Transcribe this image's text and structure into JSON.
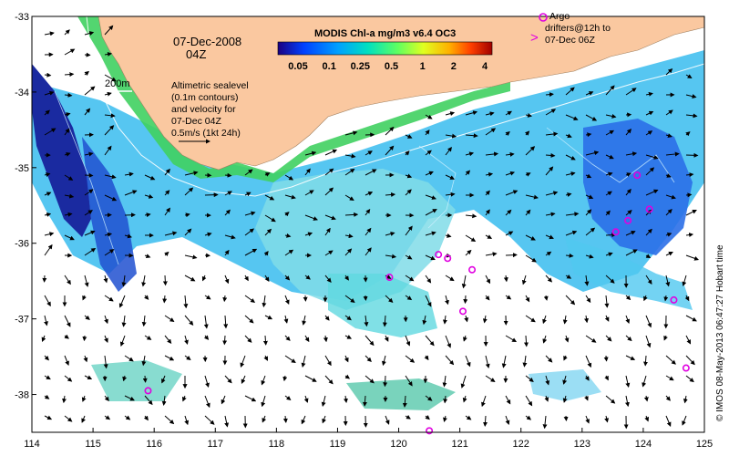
{
  "map": {
    "date_label": "07-Dec-2008",
    "time_label": "04Z",
    "depth_contour_label": "200m",
    "legend_lines": [
      "Altimetric sealevel",
      "(0.1m contours)",
      "and velocity for",
      "07-Dec 04Z",
      "0.5m/s (1kt 24h)"
    ],
    "colorbar": {
      "title": "MODIS Chl-a mg/m3 v6.4 OC3",
      "tick_labels": [
        "0.05",
        "0.1",
        "0.25",
        "0.5",
        "1",
        "2",
        "4"
      ],
      "colors": [
        "#1a0080",
        "#0040ff",
        "#00a0ff",
        "#00e0c0",
        "#60ff60",
        "#e0ff20",
        "#ffb000",
        "#ff4000",
        "#a00000"
      ]
    },
    "argo_legend": {
      "symbol": "o",
      "line1": "Argo",
      "line2": "drifters@12h to",
      "line3": "07-Dec 06Z"
    },
    "credit": "© IMOS 08-May-2013 06:47:27 Hobart time",
    "x_axis": {
      "ticks": [
        "114",
        "115",
        "116",
        "117",
        "118",
        "119",
        "120",
        "121",
        "122",
        "123",
        "124",
        "125"
      ]
    },
    "y_axis": {
      "ticks": [
        "-33",
        "-34",
        "-35",
        "-36",
        "-37",
        "-38"
      ]
    },
    "extent": {
      "lon": [
        114,
        125
      ],
      "lat": [
        -38.5,
        -33
      ]
    },
    "colors": {
      "land": "#fac8a0",
      "argo": "#e000e0",
      "deep_chl": "#1020a0",
      "mid_chl": "#00b8ff",
      "high_chl": "#60e040"
    },
    "argo_floats": [
      {
        "lon": 115.9,
        "lat": -37.95
      },
      {
        "lon": 119.85,
        "lat": -36.45
      },
      {
        "lon": 120.65,
        "lat": -36.15
      },
      {
        "lon": 120.8,
        "lat": -36.2
      },
      {
        "lon": 121.2,
        "lat": -36.35
      },
      {
        "lon": 121.05,
        "lat": -36.9
      },
      {
        "lon": 120.5,
        "lat": -38.48
      },
      {
        "lon": 123.9,
        "lat": -35.1
      },
      {
        "lon": 123.55,
        "lat": -35.85
      },
      {
        "lon": 123.75,
        "lat": -35.7
      },
      {
        "lon": 124.1,
        "lat": -35.55
      },
      {
        "lon": 124.5,
        "lat": -36.75
      },
      {
        "lon": 124.7,
        "lat": -37.65
      }
    ]
  }
}
